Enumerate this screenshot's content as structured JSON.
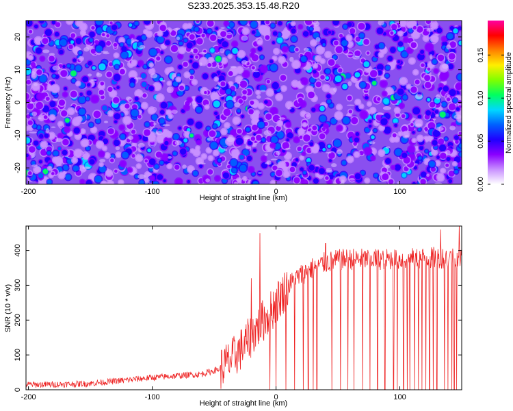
{
  "title": "S233.2025.353.15.48.R20",
  "chart_data": [
    {
      "type": "heatmap",
      "xlabel": "Height of straight line (km)",
      "ylabel": "Frequency (Hz)",
      "xlim": [
        -202,
        150
      ],
      "ylim": [
        -25,
        25
      ],
      "xticks": [
        -200,
        -100,
        0,
        100
      ],
      "xtick_labels": [
        "-200",
        "-100",
        "0",
        "100"
      ],
      "yticks": [
        -20,
        -10,
        0,
        10,
        20
      ],
      "ytick_labels": [
        "-20",
        "-10",
        "0",
        "10",
        "20"
      ],
      "colorbar": {
        "label": "Normalized spectral amplitude",
        "range": [
          0.0,
          0.19
        ],
        "ticks": [
          0.0,
          0.05,
          0.1,
          0.15
        ],
        "tick_labels": [
          "0.00",
          "0.05",
          "0.10",
          "0.15"
        ],
        "colors": [
          "#ffffff",
          "#c890ff",
          "#8a00ff",
          "#2000ff",
          "#0060ff",
          "#00d8ff",
          "#00ff60",
          "#80ff00",
          "#ffee00",
          "#ff8000",
          "#ff0000",
          "#ff00a0"
        ]
      },
      "description_values": {
        "typical_amplitude": [
          0.02,
          0.08
        ],
        "peak_amplitude": 0.1
      }
    },
    {
      "type": "line",
      "xlabel": "Height of straight line (km)",
      "ylabel": "SNR (10 * v/v)",
      "xlim": [
        -202,
        150
      ],
      "ylim": [
        0,
        470
      ],
      "xticks": [
        -200,
        -100,
        0,
        100
      ],
      "xtick_labels": [
        "-200",
        "-100",
        "0",
        "100"
      ],
      "yticks": [
        0,
        100,
        200,
        300,
        400
      ],
      "ytick_labels": [
        "0",
        "100",
        "200",
        "300",
        "400"
      ],
      "series": [
        {
          "name": "SNR",
          "color": "#ee2222",
          "envelope_x": [
            -202,
            -180,
            -150,
            -120,
            -100,
            -80,
            -60,
            -45,
            -35,
            -25,
            -15,
            -10,
            -5,
            0,
            10,
            20,
            30,
            40,
            50,
            60,
            80,
            100,
            120,
            140,
            150
          ],
          "envelope_y": [
            15,
            15,
            18,
            28,
            35,
            40,
            45,
            60,
            90,
            130,
            180,
            200,
            220,
            250,
            300,
            330,
            350,
            365,
            372,
            375,
            375,
            375,
            378,
            380,
            380
          ],
          "spikes": [
            {
              "x": -13,
              "y": 450
            },
            {
              "x": -20,
              "y": 320
            },
            {
              "x": 40,
              "y": 420
            },
            {
              "x": 133,
              "y": 460
            },
            {
              "x": 148,
              "y": 470
            }
          ],
          "dropouts_x": [
            -5,
            0,
            8,
            15,
            22,
            26,
            30,
            33,
            40,
            45,
            52,
            58,
            63,
            70,
            76,
            82,
            88,
            95,
            98,
            103,
            106,
            108,
            112,
            115,
            118,
            121,
            124,
            127,
            130,
            133,
            136,
            139,
            142,
            144,
            146,
            148
          ]
        }
      ]
    }
  ]
}
